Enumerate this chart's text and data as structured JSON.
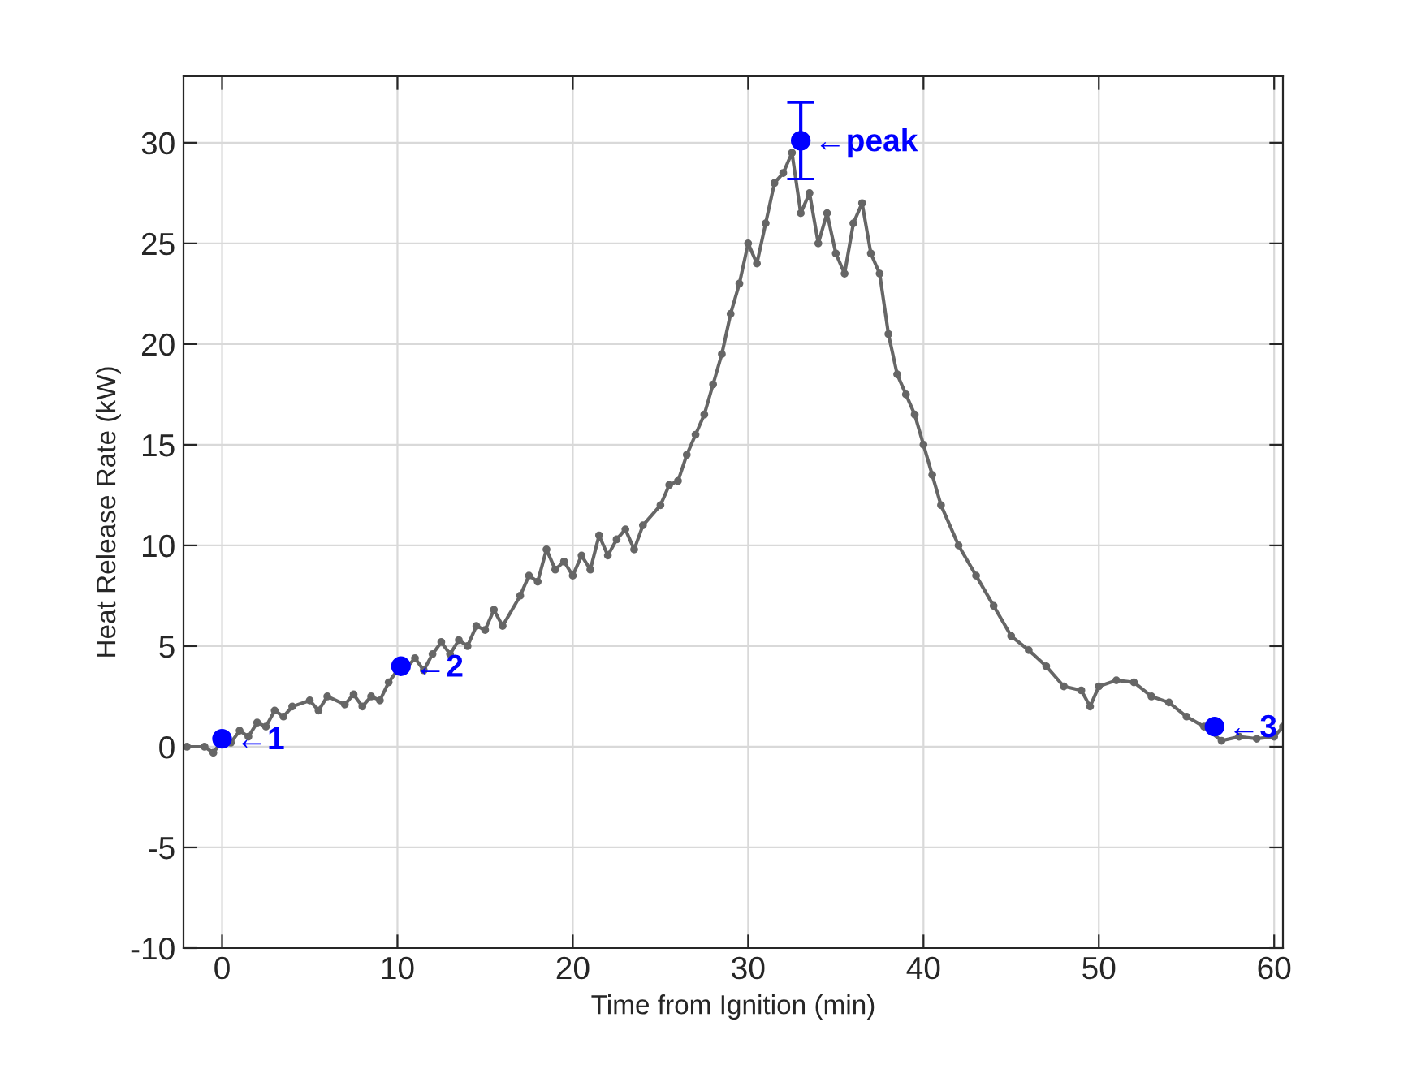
{
  "chart_data": {
    "type": "line",
    "xlabel": "Time from Ignition (min)",
    "ylabel": "Heat Release Rate (kW)",
    "xlim": [
      -2.2,
      60.5
    ],
    "xticks": [
      0,
      10,
      20,
      30,
      40,
      50,
      60
    ],
    "ylim": [
      -10,
      33.3
    ],
    "yticks": [
      -10,
      -5,
      0,
      5,
      10,
      15,
      20,
      25,
      30
    ],
    "grid": true,
    "series": [
      {
        "color": "#666666",
        "marker": "circle",
        "line_style": "solid",
        "x": [
          -2,
          -1,
          -0.5,
          0,
          0.5,
          1,
          1.5,
          2,
          2.5,
          3,
          3.5,
          4,
          5,
          5.5,
          6,
          7,
          7.5,
          8,
          8.5,
          9,
          9.5,
          10,
          10.5,
          11,
          11.5,
          12,
          12.5,
          13,
          13.5,
          14,
          14.5,
          15,
          15.5,
          16,
          17,
          17.5,
          18,
          18.5,
          19,
          19.5,
          20,
          20.5,
          21,
          21.5,
          22,
          22.5,
          23,
          23.5,
          24,
          25,
          25.5,
          26,
          26.5,
          27,
          27.5,
          28,
          28.5,
          29,
          29.5,
          30,
          30.5,
          31,
          31.5,
          32,
          32.5,
          33,
          33.5,
          34,
          34.5,
          35,
          35.5,
          36,
          36.5,
          37,
          37.5,
          38,
          38.5,
          39,
          39.5,
          40,
          40.5,
          41,
          42,
          43,
          44,
          45,
          46,
          47,
          48,
          49,
          49.5,
          50,
          51,
          52,
          53,
          54,
          55,
          56,
          57,
          58,
          59,
          60,
          60.5
        ],
        "values": [
          0,
          0,
          -0.3,
          0.3,
          0.2,
          0.8,
          0.5,
          1.2,
          1.0,
          1.8,
          1.5,
          2.0,
          2.3,
          1.8,
          2.5,
          2.1,
          2.6,
          2.0,
          2.5,
          2.3,
          3.2,
          3.8,
          3.9,
          4.4,
          3.8,
          4.6,
          5.2,
          4.6,
          5.3,
          5.0,
          6.0,
          5.8,
          6.8,
          6.0,
          7.5,
          8.5,
          8.2,
          9.8,
          8.8,
          9.2,
          8.5,
          9.5,
          8.8,
          10.5,
          9.5,
          10.3,
          10.8,
          9.8,
          11.0,
          12.0,
          13.0,
          13.2,
          14.5,
          15.5,
          16.5,
          18.0,
          19.5,
          21.5,
          23.0,
          25.0,
          24.0,
          26.0,
          28.0,
          28.5,
          29.5,
          26.5,
          27.5,
          25.0,
          26.5,
          24.5,
          23.5,
          26.0,
          27.0,
          24.5,
          23.5,
          20.5,
          18.5,
          17.5,
          16.5,
          15.0,
          13.5,
          12.0,
          10.0,
          8.5,
          7.0,
          5.5,
          4.8,
          4.0,
          3.0,
          2.8,
          2.0,
          3.0,
          3.3,
          3.2,
          2.5,
          2.2,
          1.5,
          1.0,
          0.3,
          0.5,
          0.4,
          0.5,
          1.0
        ]
      },
      {
        "type": "scatter",
        "color": "#0000ff",
        "marker": "circle",
        "x": [
          0,
          10.2,
          33.0,
          56.6
        ],
        "values": [
          0.4,
          4.0,
          30.1,
          1.0
        ],
        "errors": [
          null,
          null,
          [
            28.2,
            32.0
          ],
          null
        ]
      }
    ],
    "annotations": [
      {
        "text": "←1",
        "x": 0,
        "y": 0.4
      },
      {
        "text": "←2",
        "x": 10.2,
        "y": 4.0
      },
      {
        "text": "←peak",
        "x": 33.0,
        "y": 30.1
      },
      {
        "text": "←3",
        "x": 56.6,
        "y": 1.0
      }
    ]
  }
}
